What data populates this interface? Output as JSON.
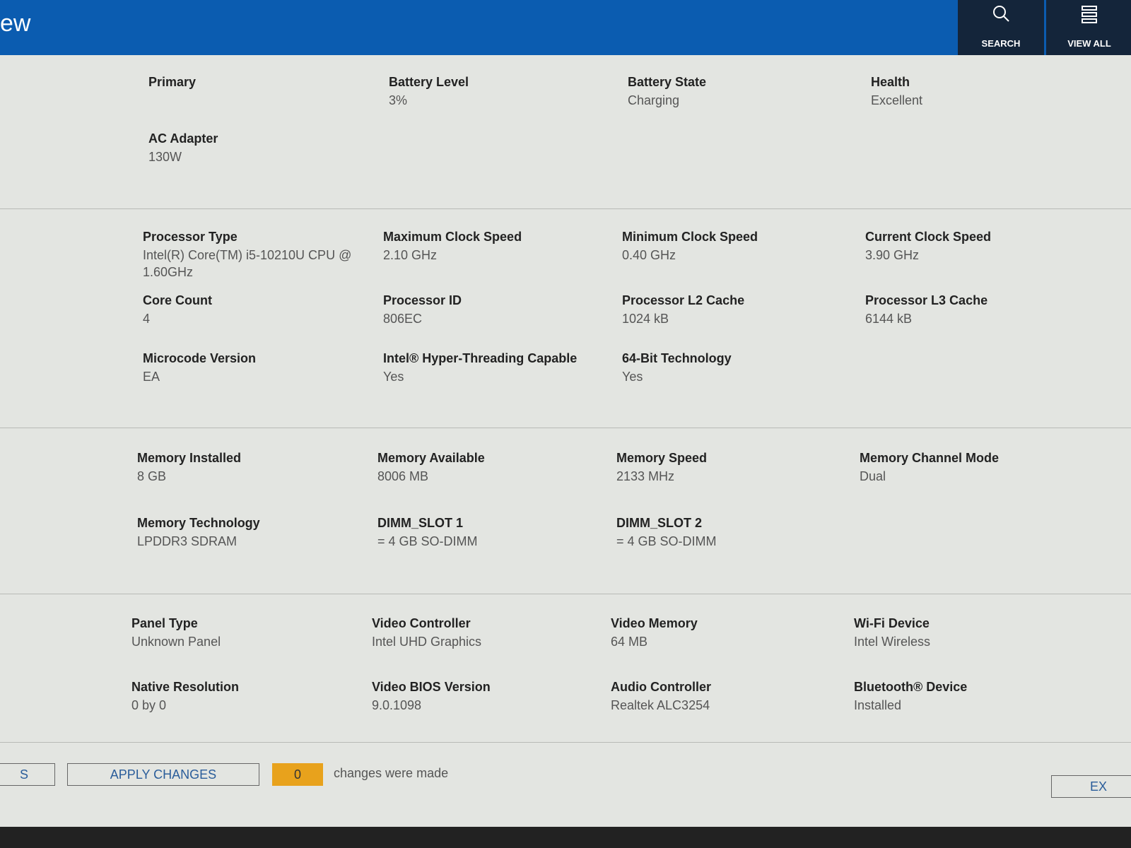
{
  "header": {
    "title": "ew",
    "buttons": [
      "SEARCH",
      "VIEW ALL"
    ]
  },
  "sections": [
    {
      "rows": [
        [
          {
            "label": "Primary"
          },
          {
            "label": "Battery Level",
            "value": "3%"
          },
          {
            "label": "Battery State",
            "value": "Charging"
          },
          {
            "label": "Health",
            "value": "Excellent"
          }
        ],
        [
          {
            "label": "AC Adapter",
            "value": "130W"
          }
        ]
      ]
    },
    {
      "rows": [
        [
          {
            "label": "Processor Type",
            "value": "Intel(R) Core(TM) i5-10210U CPU @ 1.60GHz"
          },
          {
            "label": "Maximum Clock Speed",
            "value": "2.10 GHz"
          },
          {
            "label": "Minimum Clock Speed",
            "value": "0.40 GHz"
          },
          {
            "label": "Current Clock Speed",
            "value": "3.90 GHz"
          }
        ],
        [
          {
            "label": "Core Count",
            "value": "4"
          },
          {
            "label": "Processor ID",
            "value": "806EC"
          },
          {
            "label": "Processor L2 Cache",
            "value": "1024 kB"
          },
          {
            "label": "Processor L3 Cache",
            "value": "6144 kB"
          }
        ],
        [
          {
            "label": "Microcode Version",
            "value": "EA"
          },
          {
            "label": "Intel® Hyper-Threading Capable",
            "value": "Yes"
          },
          {
            "label": "64-Bit Technology",
            "value": "Yes"
          }
        ]
      ]
    },
    {
      "rows": [
        [
          {
            "label": "Memory Installed",
            "value": "8 GB"
          },
          {
            "label": "Memory Available",
            "value": "8006 MB"
          },
          {
            "label": "Memory Speed",
            "value": "2133 MHz"
          },
          {
            "label": "Memory Channel Mode",
            "value": "Dual"
          }
        ],
        [
          {
            "label": "Memory Technology",
            "value": "LPDDR3 SDRAM"
          },
          {
            "label": "DIMM_SLOT 1",
            "value": "= 4 GB SO-DIMM"
          },
          {
            "label": "DIMM_SLOT 2",
            "value": "= 4 GB SO-DIMM"
          }
        ]
      ]
    },
    {
      "rows": [
        [
          {
            "label": "Panel Type",
            "value": "Unknown Panel"
          },
          {
            "label": "Video Controller",
            "value": "Intel UHD Graphics"
          },
          {
            "label": "Video Memory",
            "value": "64 MB"
          },
          {
            "label": "Wi-Fi Device",
            "value": "Intel Wireless"
          }
        ],
        [
          {
            "label": "Native Resolution",
            "value": "0 by 0"
          },
          {
            "label": "Video BIOS Version",
            "value": "9.0.1098"
          },
          {
            "label": "Audio Controller",
            "value": "Realtek ALC3254"
          },
          {
            "label": "Bluetooth® Device",
            "value": "Installed"
          }
        ]
      ]
    }
  ],
  "footer": {
    "left_button": "S",
    "apply_button": "APPLY CHANGES",
    "change_count": 0,
    "change_text": "changes were made",
    "exit_button": "EX"
  }
}
